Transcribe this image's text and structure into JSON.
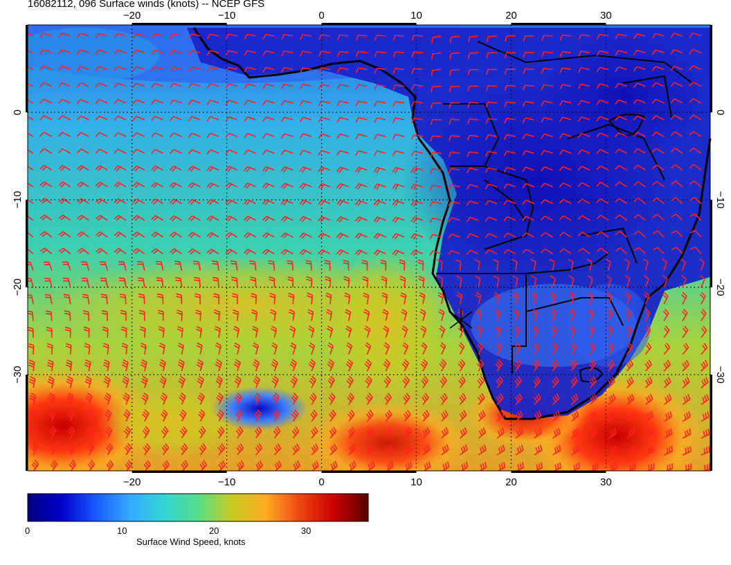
{
  "header": {
    "title": "16082112, 096 Surface winds (knots) -- NCEP GFS"
  },
  "map": {
    "lon_range": [
      -31,
      41
    ],
    "lat_range": [
      -41,
      10
    ],
    "lon_ticks": [
      "-20",
      "-10",
      "0",
      "10",
      "20",
      "30"
    ],
    "lat_ticks": [
      "0",
      "-10",
      "-20",
      "-30"
    ],
    "graticule_lon": [
      -20,
      -10,
      0,
      10,
      20,
      30
    ],
    "graticule_lat": [
      0,
      -10,
      -20,
      -30
    ],
    "coast_color": "#000000",
    "barb_color": "#ff2020",
    "grid_color": "#000000",
    "marker_label": "X"
  },
  "colorbar": {
    "ticks": [
      "0",
      "10",
      "20",
      "30"
    ],
    "title": "Surface Wind Speed, knots",
    "range": [
      0,
      37
    ],
    "colors": [
      "#000080",
      "#0000cc",
      "#1a5aff",
      "#33aaff",
      "#33d6d6",
      "#55dd88",
      "#c8cc22",
      "#ffaa22",
      "#ee4411",
      "#cc0000",
      "#550000"
    ]
  }
}
